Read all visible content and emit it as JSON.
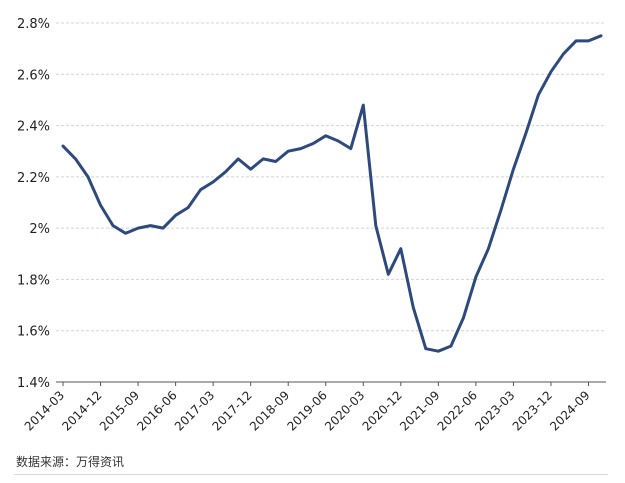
{
  "source_note": "数据来源：万得资讯",
  "chart_data": {
    "type": "line",
    "title": "",
    "xlabel": "",
    "ylabel": "",
    "ylim": [
      1.4,
      2.8
    ],
    "yticks": [
      1.4,
      1.6,
      1.8,
      2.0,
      2.2,
      2.4,
      2.6,
      2.8
    ],
    "ytick_labels": [
      "1.4%",
      "1.6%",
      "1.8%",
      "2%",
      "2.2%",
      "2.4%",
      "2.6%",
      "2.8%"
    ],
    "xtick_labels": [
      "2014-03",
      "2014-12",
      "2015-09",
      "2016-06",
      "2017-03",
      "2017-12",
      "2018-09",
      "2019-06",
      "2020-03",
      "2020-12",
      "2021-09",
      "2022-06",
      "2023-03",
      "2023-12",
      "2024-09"
    ],
    "grid": "horizontal",
    "line_color": "#2e4a7d",
    "x": [
      "2014-03",
      "2014-06",
      "2014-09",
      "2014-12",
      "2015-03",
      "2015-06",
      "2015-09",
      "2015-12",
      "2016-03",
      "2016-06",
      "2016-09",
      "2016-12",
      "2017-03",
      "2017-06",
      "2017-09",
      "2017-12",
      "2018-03",
      "2018-06",
      "2018-09",
      "2018-12",
      "2019-03",
      "2019-06",
      "2019-09",
      "2019-12",
      "2020-03",
      "2020-06",
      "2020-09",
      "2020-12",
      "2021-03",
      "2021-06",
      "2021-09",
      "2021-12",
      "2022-03",
      "2022-06",
      "2022-09",
      "2022-12",
      "2023-03",
      "2023-06",
      "2023-09",
      "2023-12",
      "2024-03",
      "2024-06",
      "2024-09",
      "2024-12"
    ],
    "values": [
      2.32,
      2.27,
      2.2,
      2.09,
      2.01,
      1.98,
      2.0,
      2.01,
      2.0,
      2.05,
      2.08,
      2.15,
      2.18,
      2.22,
      2.27,
      2.23,
      2.27,
      2.26,
      2.3,
      2.31,
      2.33,
      2.36,
      2.34,
      2.31,
      2.48,
      2.01,
      1.82,
      1.92,
      1.69,
      1.53,
      1.52,
      1.54,
      1.65,
      1.81,
      1.92,
      2.07,
      2.23,
      2.37,
      2.52,
      2.61,
      2.68,
      2.73,
      2.73,
      2.75
    ]
  }
}
